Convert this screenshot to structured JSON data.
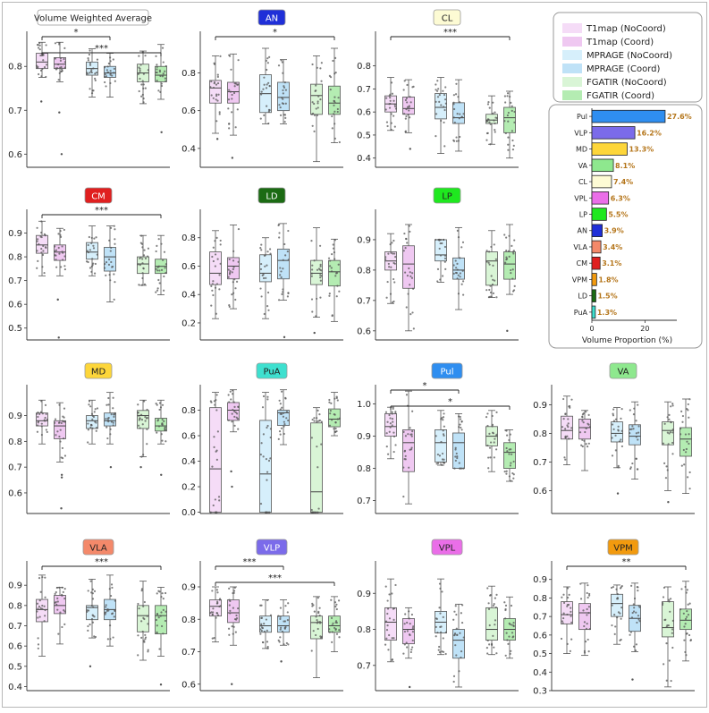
{
  "colors": {
    "T1map (NoCoord)": "#f5dcf7",
    "T1map (Coord)": "#efc8f1",
    "MPRAGE (NoCoord)": "#d6effb",
    "MPRAGE (Coord)": "#bfe2f7",
    "FGATIR (NoCoord)": "#d9f5d6",
    "FGATIR (Coord)": "#b4ecb2"
  },
  "legend": {
    "entries": [
      "T1map (NoCoord)",
      "T1map (Coord)",
      "MPRAGE (NoCoord)",
      "MPRAGE (Coord)",
      "FGATIR (NoCoord)",
      "FGATIR (Coord)"
    ]
  },
  "chart_data": [
    {
      "type": "box",
      "title": "Volume Weighted Average",
      "title_color": "#ffffff",
      "title_text_color": "#222222",
      "ylim": [
        0.57,
        0.88
      ],
      "yticks": [
        0.6,
        0.7,
        0.8
      ],
      "boxes": [
        {
          "q1": 0.795,
          "med": 0.81,
          "q3": 0.83,
          "lo": 0.775,
          "hi": 0.855
        },
        {
          "q1": 0.795,
          "med": 0.805,
          "q3": 0.82,
          "lo": 0.765,
          "hi": 0.855
        },
        {
          "q1": 0.78,
          "med": 0.795,
          "q3": 0.81,
          "lo": 0.73,
          "hi": 0.84
        },
        {
          "q1": 0.775,
          "med": 0.785,
          "q3": 0.8,
          "lo": 0.73,
          "hi": 0.83
        },
        {
          "q1": 0.765,
          "med": 0.785,
          "q3": 0.805,
          "lo": 0.715,
          "hi": 0.835
        },
        {
          "q1": 0.765,
          "med": 0.78,
          "q3": 0.8,
          "lo": 0.725,
          "hi": 0.85
        }
      ],
      "outliers": [
        [
          0.72
        ],
        [
          0.6,
          0.695
        ],
        [],
        [],
        [],
        [
          0.65
        ]
      ],
      "sig": [
        {
          "from": 0,
          "to": 3,
          "label": "*"
        },
        {
          "from": 0,
          "to": 5,
          "label": "***"
        }
      ]
    },
    {
      "type": "box",
      "title": "AN",
      "title_color": "#1f2fd8",
      "title_text_color": "#ffffff",
      "ylim": [
        0.3,
        1.02
      ],
      "yticks": [
        0.4,
        0.6,
        0.8
      ],
      "boxes": [
        {
          "q1": 0.64,
          "med": 0.72,
          "q3": 0.76,
          "lo": 0.48,
          "hi": 0.89
        },
        {
          "q1": 0.64,
          "med": 0.7,
          "q3": 0.75,
          "lo": 0.47,
          "hi": 0.9
        },
        {
          "q1": 0.59,
          "med": 0.69,
          "q3": 0.79,
          "lo": 0.53,
          "hi": 0.93
        },
        {
          "q1": 0.6,
          "med": 0.67,
          "q3": 0.75,
          "lo": 0.53,
          "hi": 0.87
        },
        {
          "q1": 0.58,
          "med": 0.68,
          "q3": 0.74,
          "lo": 0.33,
          "hi": 0.89
        },
        {
          "q1": 0.58,
          "med": 0.64,
          "q3": 0.73,
          "lo": 0.43,
          "hi": 0.93
        }
      ],
      "outliers": [
        [
          0.45
        ],
        [
          0.35
        ],
        [],
        [],
        [],
        []
      ],
      "sig": [
        {
          "from": 0,
          "to": 5,
          "label": "*"
        }
      ]
    },
    {
      "type": "box",
      "title": "CL",
      "title_color": "#fdfbd4",
      "title_text_color": "#222222",
      "ylim": [
        0.36,
        0.95
      ],
      "yticks": [
        0.4,
        0.5,
        0.6,
        0.7,
        0.8
      ],
      "boxes": [
        {
          "q1": 0.6,
          "med": 0.635,
          "q3": 0.67,
          "lo": 0.52,
          "hi": 0.75
        },
        {
          "q1": 0.59,
          "med": 0.615,
          "q3": 0.665,
          "lo": 0.51,
          "hi": 0.74
        },
        {
          "q1": 0.57,
          "med": 0.62,
          "q3": 0.68,
          "lo": 0.42,
          "hi": 0.75
        },
        {
          "q1": 0.55,
          "med": 0.575,
          "q3": 0.64,
          "lo": 0.43,
          "hi": 0.74
        },
        {
          "q1": 0.55,
          "med": 0.565,
          "q3": 0.59,
          "lo": 0.46,
          "hi": 0.67
        },
        {
          "q1": 0.51,
          "med": 0.575,
          "q3": 0.62,
          "lo": 0.4,
          "hi": 0.69
        }
      ],
      "outliers": [
        [],
        [
          0.44
        ],
        [],
        [],
        [],
        []
      ],
      "sig": [
        {
          "from": 0,
          "to": 5,
          "label": "***"
        }
      ]
    },
    {
      "type": "box",
      "title": "CM",
      "title_color": "#e01f1f",
      "title_text_color": "#ffffff",
      "ylim": [
        0.45,
        1.0
      ],
      "yticks": [
        0.5,
        0.6,
        0.7,
        0.8,
        0.9
      ],
      "boxes": [
        {
          "q1": 0.815,
          "med": 0.85,
          "q3": 0.89,
          "lo": 0.72,
          "hi": 0.95
        },
        {
          "q1": 0.785,
          "med": 0.82,
          "q3": 0.85,
          "lo": 0.72,
          "hi": 0.92
        },
        {
          "q1": 0.79,
          "med": 0.82,
          "q3": 0.86,
          "lo": 0.72,
          "hi": 0.93
        },
        {
          "q1": 0.74,
          "med": 0.8,
          "q3": 0.84,
          "lo": 0.61,
          "hi": 0.93
        },
        {
          "q1": 0.73,
          "med": 0.77,
          "q3": 0.8,
          "lo": 0.68,
          "hi": 0.89
        },
        {
          "q1": 0.73,
          "med": 0.76,
          "q3": 0.79,
          "lo": 0.64,
          "hi": 0.89
        }
      ],
      "outliers": [
        [],
        [
          0.46,
          0.62
        ],
        [],
        [],
        [],
        []
      ],
      "sig": [
        {
          "from": 0,
          "to": 5,
          "label": "***"
        }
      ]
    },
    {
      "type": "box",
      "title": "LD",
      "title_color": "#1b6b13",
      "title_text_color": "#ffffff",
      "ylim": [
        0.08,
        1.0
      ],
      "yticks": [
        0.2,
        0.4,
        0.6,
        0.8
      ],
      "boxes": [
        {
          "q1": 0.47,
          "med": 0.55,
          "q3": 0.7,
          "lo": 0.23,
          "hi": 0.85
        },
        {
          "q1": 0.51,
          "med": 0.6,
          "q3": 0.66,
          "lo": 0.3,
          "hi": 0.89
        },
        {
          "q1": 0.49,
          "med": 0.55,
          "q3": 0.68,
          "lo": 0.23,
          "hi": 0.8
        },
        {
          "q1": 0.51,
          "med": 0.64,
          "q3": 0.72,
          "lo": 0.36,
          "hi": 0.9
        },
        {
          "q1": 0.47,
          "med": 0.55,
          "q3": 0.64,
          "lo": 0.24,
          "hi": 0.87
        },
        {
          "q1": 0.46,
          "med": 0.56,
          "q3": 0.64,
          "lo": 0.21,
          "hi": 0.79
        }
      ],
      "outliers": [
        [],
        [],
        [],
        [
          0.1
        ],
        [
          0.13
        ],
        []
      ],
      "sig": []
    },
    {
      "type": "box",
      "title": "LP",
      "title_color": "#1fe81f",
      "title_text_color": "#222222",
      "ylim": [
        0.57,
        1.0
      ],
      "yticks": [
        0.6,
        0.7,
        0.8,
        0.9
      ],
      "boxes": [
        {
          "q1": 0.8,
          "med": 0.83,
          "q3": 0.86,
          "lo": 0.69,
          "hi": 0.92
        },
        {
          "q1": 0.74,
          "med": 0.82,
          "q3": 0.88,
          "lo": 0.6,
          "hi": 0.95
        },
        {
          "q1": 0.83,
          "med": 0.85,
          "q3": 0.9,
          "lo": 0.76,
          "hi": 0.9
        },
        {
          "q1": 0.77,
          "med": 0.8,
          "q3": 0.84,
          "lo": 0.67,
          "hi": 0.94
        },
        {
          "q1": 0.75,
          "med": 0.83,
          "q3": 0.86,
          "lo": 0.71,
          "hi": 0.93
        },
        {
          "q1": 0.77,
          "med": 0.82,
          "q3": 0.86,
          "lo": 0.72,
          "hi": 0.95
        }
      ],
      "outliers": [
        [],
        [],
        [],
        [],
        [],
        [
          0.6
        ]
      ],
      "sig": []
    },
    {
      "type": "box",
      "title": "MD",
      "title_color": "#fdd63a",
      "title_text_color": "#222222",
      "ylim": [
        0.52,
        1.02
      ],
      "yticks": [
        0.6,
        0.7,
        0.8,
        0.9
      ],
      "boxes": [
        {
          "q1": 0.86,
          "med": 0.88,
          "q3": 0.91,
          "lo": 0.79,
          "hi": 0.96
        },
        {
          "q1": 0.81,
          "med": 0.86,
          "q3": 0.88,
          "lo": 0.72,
          "hi": 0.95
        },
        {
          "q1": 0.85,
          "med": 0.88,
          "q3": 0.9,
          "lo": 0.79,
          "hi": 0.96
        },
        {
          "q1": 0.86,
          "med": 0.88,
          "q3": 0.91,
          "lo": 0.79,
          "hi": 0.99
        },
        {
          "q1": 0.85,
          "med": 0.9,
          "q3": 0.92,
          "lo": 0.74,
          "hi": 0.96
        },
        {
          "q1": 0.84,
          "med": 0.86,
          "q3": 0.89,
          "lo": 0.79,
          "hi": 0.96
        }
      ],
      "outliers": [
        [],
        [
          0.54,
          0.66,
          0.67
        ],
        [],
        [
          0.7
        ],
        [
          0.7
        ],
        [
          0.67
        ]
      ],
      "sig": []
    },
    {
      "type": "box",
      "title": "PuA",
      "title_color": "#3ee0cf",
      "title_text_color": "#222222",
      "ylim": [
        -0.01,
        1.0
      ],
      "yticks": [
        0.0,
        0.2,
        0.4,
        0.6,
        0.8
      ],
      "boxes": [
        {
          "q1": 0.0,
          "med": 0.34,
          "q3": 0.82,
          "lo": 0.0,
          "hi": 0.94
        },
        {
          "q1": 0.72,
          "med": 0.8,
          "q3": 0.86,
          "lo": 0.63,
          "hi": 0.96
        },
        {
          "q1": 0.0,
          "med": 0.3,
          "q3": 0.72,
          "lo": 0.0,
          "hi": 0.94
        },
        {
          "q1": 0.68,
          "med": 0.78,
          "q3": 0.8,
          "lo": 0.53,
          "hi": 0.96
        },
        {
          "q1": 0.0,
          "med": 0.16,
          "q3": 0.7,
          "lo": 0.0,
          "hi": 0.82
        },
        {
          "q1": 0.67,
          "med": 0.73,
          "q3": 0.81,
          "lo": 0.6,
          "hi": 0.94
        }
      ],
      "outliers": [
        [],
        [
          0.2,
          0.32
        ],
        [],
        [],
        [],
        []
      ],
      "sig": []
    },
    {
      "type": "box",
      "title": "Pul",
      "title_color": "#2f8ef0",
      "title_text_color": "#ffffff",
      "ylim": [
        0.66,
        1.06
      ],
      "yticks": [
        0.7,
        0.8,
        0.9,
        1.0
      ],
      "boxes": [
        {
          "q1": 0.9,
          "med": 0.93,
          "q3": 0.97,
          "lo": 0.83,
          "hi": 0.99
        },
        {
          "q1": 0.79,
          "med": 0.88,
          "q3": 0.92,
          "lo": 0.69,
          "hi": 1.04
        },
        {
          "q1": 0.82,
          "med": 0.88,
          "q3": 0.92,
          "lo": 0.81,
          "hi": 0.98
        },
        {
          "q1": 0.8,
          "med": 0.88,
          "q3": 0.91,
          "lo": 0.8,
          "hi": 0.97
        },
        {
          "q1": 0.87,
          "med": 0.9,
          "q3": 0.93,
          "lo": 0.79,
          "hi": 0.98
        },
        {
          "q1": 0.8,
          "med": 0.85,
          "q3": 0.88,
          "lo": 0.76,
          "hi": 0.92
        }
      ],
      "outliers": [
        [],
        [],
        [],
        [],
        [],
        []
      ],
      "sig": [
        {
          "from": 0,
          "to": 3,
          "label": "*"
        },
        {
          "from": 0,
          "to": 5,
          "label": "*"
        }
      ]
    },
    {
      "type": "box",
      "title": "VA",
      "title_color": "#8ee88e",
      "title_text_color": "#222222",
      "ylim": [
        0.52,
        0.97
      ],
      "yticks": [
        0.6,
        0.7,
        0.8,
        0.9
      ],
      "boxes": [
        {
          "q1": 0.78,
          "med": 0.81,
          "q3": 0.86,
          "lo": 0.69,
          "hi": 0.93
        },
        {
          "q1": 0.78,
          "med": 0.82,
          "q3": 0.85,
          "lo": 0.67,
          "hi": 0.88
        },
        {
          "q1": 0.77,
          "med": 0.8,
          "q3": 0.84,
          "lo": 0.68,
          "hi": 0.89
        },
        {
          "q1": 0.76,
          "med": 0.79,
          "q3": 0.83,
          "lo": 0.64,
          "hi": 0.91
        },
        {
          "q1": 0.76,
          "med": 0.81,
          "q3": 0.84,
          "lo": 0.6,
          "hi": 0.91
        },
        {
          "q1": 0.72,
          "med": 0.78,
          "q3": 0.82,
          "lo": 0.59,
          "hi": 0.92
        }
      ],
      "outliers": [
        [],
        [],
        [
          0.59
        ],
        [],
        [
          0.56
        ],
        []
      ],
      "sig": []
    },
    {
      "type": "box",
      "title": "VLA",
      "title_color": "#f4896a",
      "title_text_color": "#222222",
      "ylim": [
        0.38,
        1.02
      ],
      "yticks": [
        0.4,
        0.5,
        0.6,
        0.7,
        0.8,
        0.9
      ],
      "boxes": [
        {
          "q1": 0.72,
          "med": 0.78,
          "q3": 0.83,
          "lo": 0.55,
          "hi": 0.95
        },
        {
          "q1": 0.76,
          "med": 0.8,
          "q3": 0.85,
          "lo": 0.61,
          "hi": 0.89
        },
        {
          "q1": 0.73,
          "med": 0.79,
          "q3": 0.8,
          "lo": 0.64,
          "hi": 0.93
        },
        {
          "q1": 0.73,
          "med": 0.78,
          "q3": 0.83,
          "lo": 0.6,
          "hi": 0.95
        },
        {
          "q1": 0.67,
          "med": 0.75,
          "q3": 0.8,
          "lo": 0.53,
          "hi": 0.92
        },
        {
          "q1": 0.66,
          "med": 0.75,
          "q3": 0.8,
          "lo": 0.55,
          "hi": 0.89
        }
      ],
      "outliers": [
        [],
        [],
        [
          0.5
        ],
        [],
        [],
        [
          0.41
        ]
      ],
      "sig": [
        {
          "from": 0,
          "to": 5,
          "label": "***"
        }
      ]
    },
    {
      "type": "box",
      "title": "VLP",
      "title_color": "#7b6bea",
      "title_text_color": "#ffffff",
      "ylim": [
        0.58,
        0.98
      ],
      "yticks": [
        0.6,
        0.7,
        0.8,
        0.9
      ],
      "boxes": [
        {
          "q1": 0.81,
          "med": 0.84,
          "q3": 0.86,
          "lo": 0.73,
          "hi": 0.9
        },
        {
          "q1": 0.79,
          "med": 0.82,
          "q3": 0.86,
          "lo": 0.72,
          "hi": 0.9
        },
        {
          "q1": 0.76,
          "med": 0.78,
          "q3": 0.81,
          "lo": 0.71,
          "hi": 0.86
        },
        {
          "q1": 0.76,
          "med": 0.78,
          "q3": 0.81,
          "lo": 0.72,
          "hi": 0.86
        },
        {
          "q1": 0.74,
          "med": 0.79,
          "q3": 0.81,
          "lo": 0.62,
          "hi": 0.87
        },
        {
          "q1": 0.76,
          "med": 0.78,
          "q3": 0.81,
          "lo": 0.7,
          "hi": 0.87
        }
      ],
      "outliers": [
        [],
        [
          0.6
        ],
        [],
        [
          0.67
        ],
        [],
        []
      ],
      "sig": [
        {
          "from": 0,
          "to": 3,
          "label": "***"
        },
        {
          "from": 0,
          "to": 5,
          "label": "***"
        }
      ]
    },
    {
      "type": "box",
      "title": "VPL",
      "title_color": "#ea6ee8",
      "title_text_color": "#222222",
      "ylim": [
        0.63,
        0.99
      ],
      "yticks": [
        0.7,
        0.8,
        0.9
      ],
      "boxes": [
        {
          "q1": 0.77,
          "med": 0.82,
          "q3": 0.86,
          "lo": 0.71,
          "hi": 0.94
        },
        {
          "q1": 0.76,
          "med": 0.8,
          "q3": 0.83,
          "lo": 0.72,
          "hi": 0.86
        },
        {
          "q1": 0.79,
          "med": 0.82,
          "q3": 0.85,
          "lo": 0.73,
          "hi": 0.94
        },
        {
          "q1": 0.72,
          "med": 0.77,
          "q3": 0.8,
          "lo": 0.64,
          "hi": 0.87
        },
        {
          "q1": 0.77,
          "med": 0.8,
          "q3": 0.86,
          "lo": 0.73,
          "hi": 0.92
        },
        {
          "q1": 0.77,
          "med": 0.8,
          "q3": 0.83,
          "lo": 0.72,
          "hi": 0.89
        }
      ],
      "outliers": [
        [],
        [
          0.64
        ],
        [],
        [],
        [],
        []
      ],
      "sig": []
    },
    {
      "type": "box",
      "title": "VPM",
      "title_color": "#f29a0e",
      "title_text_color": "#222222",
      "ylim": [
        0.3,
        1.0
      ],
      "yticks": [
        0.3,
        0.4,
        0.5,
        0.6,
        0.7,
        0.8,
        0.9
      ],
      "boxes": [
        {
          "q1": 0.66,
          "med": 0.71,
          "q3": 0.78,
          "lo": 0.5,
          "hi": 0.86
        },
        {
          "q1": 0.63,
          "med": 0.72,
          "q3": 0.77,
          "lo": 0.49,
          "hi": 0.88
        },
        {
          "q1": 0.7,
          "med": 0.77,
          "q3": 0.82,
          "lo": 0.55,
          "hi": 0.87
        },
        {
          "q1": 0.62,
          "med": 0.69,
          "q3": 0.76,
          "lo": 0.51,
          "hi": 0.88
        },
        {
          "q1": 0.59,
          "med": 0.64,
          "q3": 0.78,
          "lo": 0.32,
          "hi": 0.86
        },
        {
          "q1": 0.63,
          "med": 0.68,
          "q3": 0.74,
          "lo": 0.46,
          "hi": 0.89
        }
      ],
      "outliers": [
        [],
        [],
        [],
        [
          0.36
        ],
        [],
        []
      ],
      "sig": [
        {
          "from": 0,
          "to": 5,
          "label": "**"
        }
      ]
    },
    {
      "type": "bar",
      "orientation": "horizontal",
      "categories": [
        "Pul",
        "VLP",
        "MD",
        "VA",
        "CL",
        "VPL",
        "LP",
        "AN",
        "VLA",
        "CM",
        "VPM",
        "LD",
        "PuA"
      ],
      "values": [
        27.6,
        16.2,
        13.3,
        8.1,
        7.4,
        6.3,
        5.5,
        3.9,
        3.4,
        3.1,
        1.8,
        1.5,
        1.3
      ],
      "labels": [
        "27.6%",
        "16.2%",
        "13.3%",
        "8.1%",
        "7.4%",
        "6.3%",
        "5.5%",
        "3.9%",
        "3.4%",
        "3.1%",
        "1.8%",
        "1.5%",
        "1.3%"
      ],
      "bar_colors": [
        "#2f8ef0",
        "#7b6bea",
        "#fdd63a",
        "#8ee88e",
        "#fdfbd4",
        "#ea6ee8",
        "#1fe81f",
        "#1f2fd8",
        "#f4896a",
        "#e01f1f",
        "#f29a0e",
        "#1b6b13",
        "#3ee0cf"
      ],
      "label_color": "#b5761b",
      "xlabel": "Volume Proportion (%)",
      "xlim": [
        0,
        32
      ],
      "xticks": [
        0,
        20
      ]
    }
  ]
}
